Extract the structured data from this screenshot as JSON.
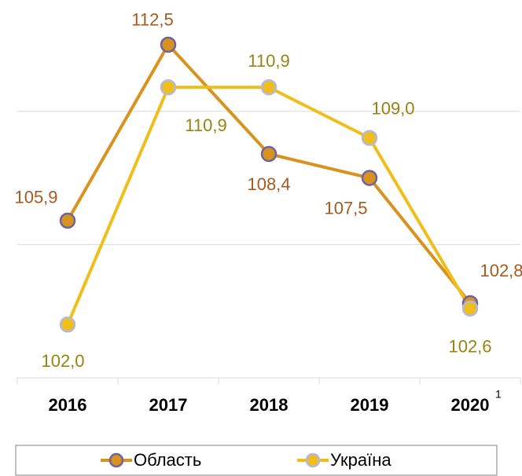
{
  "chart_data": {
    "type": "line",
    "categories": [
      "2016",
      "2017",
      "2018",
      "2019",
      "2020"
    ],
    "category_superscripts": [
      null,
      null,
      null,
      null,
      "1"
    ],
    "series": [
      {
        "name": "Область",
        "color": "#d9921e",
        "marker_edge": "#6b64a0",
        "label_color": "#a65a1e",
        "values": [
          105.9,
          112.5,
          108.4,
          107.5,
          102.8
        ],
        "value_labels": [
          "105,9",
          "112,5",
          "108,4",
          "107,5",
          "102,8"
        ]
      },
      {
        "name": "Україна",
        "color": "#f0be1a",
        "marker_edge": "#b4b8dc",
        "label_color": "#9a8210",
        "values": [
          102.0,
          110.9,
          110.9,
          109.0,
          102.6
        ],
        "value_labels": [
          "102,0",
          "110,9",
          "110,9",
          "109,0",
          "102,6"
        ]
      }
    ],
    "ylim": [
      100,
      114
    ],
    "yticks": [
      105,
      110
    ],
    "grid": true,
    "legend": "bottom"
  }
}
